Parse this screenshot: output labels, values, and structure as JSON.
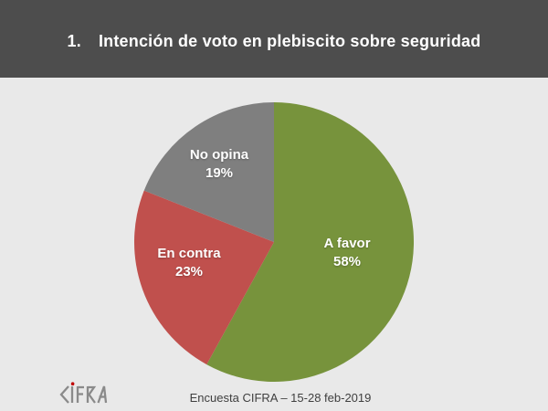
{
  "header": {
    "number": "1.",
    "title": "Intención de voto en plebiscito sobre seguridad"
  },
  "chart_data": {
    "type": "pie",
    "title": "Intención de voto en plebiscito sobre seguridad",
    "direction": "clockwise",
    "start_angle_deg": 0,
    "slices": [
      {
        "label": "A favor",
        "value": 58,
        "pct": "58%",
        "color": "#77933C"
      },
      {
        "label": "En contra",
        "value": 23,
        "pct": "23%",
        "color": "#C0504D"
      },
      {
        "label": "No opina",
        "value": 19,
        "pct": "19%",
        "color": "#7F7F7F"
      }
    ],
    "label_style": "label and percent inside slice, white bold"
  },
  "footer": {
    "logo_text": "CIFRA",
    "caption": "Encuesta CIFRA – 15-28 feb-2019"
  },
  "colors": {
    "header_bg": "#4D4D4D",
    "body_bg": "#E9E9E9",
    "title_text": "#FFFFFF",
    "slice_label_text": "#FFFFFF",
    "caption_text": "#3F3F3F",
    "logo_gray": "#8A8A8A",
    "logo_dot_red": "#C00000"
  }
}
